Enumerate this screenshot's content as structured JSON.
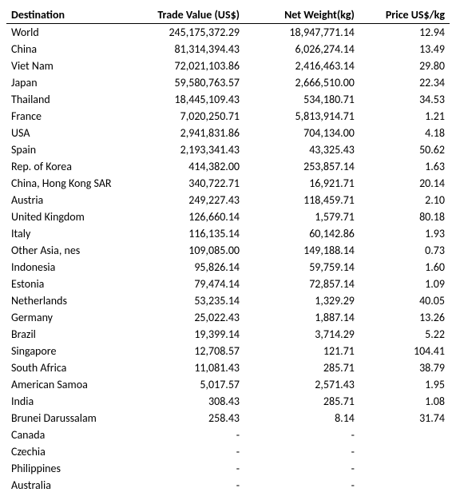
{
  "table": {
    "columns": [
      {
        "label": "Destination",
        "align": "left"
      },
      {
        "label": "Trade Value (US$)",
        "align": "right"
      },
      {
        "label": "Net Weight(kg)",
        "align": "right"
      },
      {
        "label": "Price US$/kg",
        "align": "right"
      }
    ],
    "rows": [
      {
        "dest": "World",
        "trade": "245,175,372.29",
        "weight": "18,947,771.14",
        "price": "12.94"
      },
      {
        "dest": "China",
        "trade": "81,314,394.43",
        "weight": "6,026,274.14",
        "price": "13.49"
      },
      {
        "dest": "Viet Nam",
        "trade": "72,021,103.86",
        "weight": "2,416,463.14",
        "price": "29.80"
      },
      {
        "dest": "Japan",
        "trade": "59,580,763.57",
        "weight": "2,666,510.00",
        "price": "22.34"
      },
      {
        "dest": "Thailand",
        "trade": "18,445,109.43",
        "weight": "534,180.71",
        "price": "34.53"
      },
      {
        "dest": "France",
        "trade": "7,020,250.71",
        "weight": "5,813,914.71",
        "price": "1.21"
      },
      {
        "dest": "USA",
        "trade": "2,941,831.86",
        "weight": "704,134.00",
        "price": "4.18"
      },
      {
        "dest": "Spain",
        "trade": "2,193,341.43",
        "weight": "43,325.43",
        "price": "50.62"
      },
      {
        "dest": "Rep. of Korea",
        "trade": "414,382.00",
        "weight": "253,857.14",
        "price": "1.63"
      },
      {
        "dest": "China, Hong Kong SAR",
        "trade": "340,722.71",
        "weight": "16,921.71",
        "price": "20.14"
      },
      {
        "dest": "Austria",
        "trade": "249,227.43",
        "weight": "118,459.71",
        "price": "2.10"
      },
      {
        "dest": "United Kingdom",
        "trade": "126,660.14",
        "weight": "1,579.71",
        "price": "80.18"
      },
      {
        "dest": "Italy",
        "trade": "116,135.14",
        "weight": "60,142.86",
        "price": "1.93"
      },
      {
        "dest": "Other Asia, nes",
        "trade": "109,085.00",
        "weight": "149,188.14",
        "price": "0.73"
      },
      {
        "dest": "Indonesia",
        "trade": "95,826.14",
        "weight": "59,759.14",
        "price": "1.60"
      },
      {
        "dest": "Estonia",
        "trade": "79,474.14",
        "weight": "72,857.14",
        "price": "1.09"
      },
      {
        "dest": "Netherlands",
        "trade": "53,235.14",
        "weight": "1,329.29",
        "price": "40.05"
      },
      {
        "dest": "Germany",
        "trade": "25,022.43",
        "weight": "1,887.14",
        "price": "13.26"
      },
      {
        "dest": "Brazil",
        "trade": "19,399.14",
        "weight": "3,714.29",
        "price": "5.22"
      },
      {
        "dest": "Singapore",
        "trade": "12,708.57",
        "weight": "121.71",
        "price": "104.41"
      },
      {
        "dest": "South Africa",
        "trade": "11,081.43",
        "weight": "285.71",
        "price": "38.79"
      },
      {
        "dest": "American Samoa",
        "trade": "5,017.57",
        "weight": "2,571.43",
        "price": "1.95"
      },
      {
        "dest": "India",
        "trade": "308.43",
        "weight": "285.71",
        "price": "1.08"
      },
      {
        "dest": "Brunei Darussalam",
        "trade": "258.43",
        "weight": "8.14",
        "price": "31.74"
      },
      {
        "dest": "Canada",
        "trade": "-",
        "weight": "-",
        "price": ""
      },
      {
        "dest": "Czechia",
        "trade": "-",
        "weight": "-",
        "price": ""
      },
      {
        "dest": "Philippines",
        "trade": "-",
        "weight": "-",
        "price": ""
      },
      {
        "dest": "Australia",
        "trade": "-",
        "weight": "-",
        "price": ""
      }
    ]
  }
}
